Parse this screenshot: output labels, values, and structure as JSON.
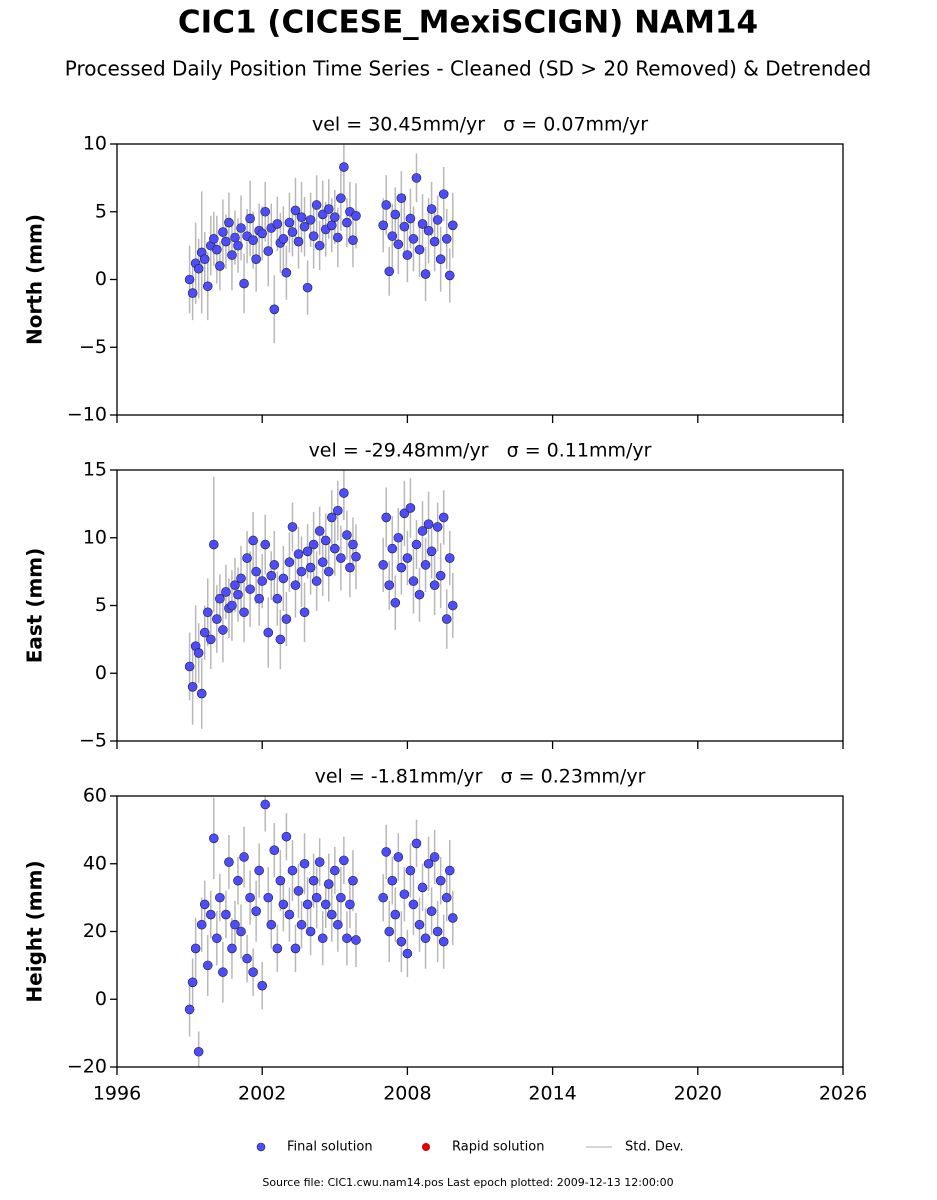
{
  "title": "CIC1 (CICESE_MexiSCIGN) NAM14",
  "subtitle": "Processed Daily Position Time Series - Cleaned (SD > 20 Removed) & Detrended",
  "legend": [
    {
      "name": "Final solution",
      "color": "#4d4dff"
    },
    {
      "name": "Rapid solution",
      "color": "#e00000"
    },
    {
      "name": "Std. Dev.",
      "color": "#c8c8c8"
    }
  ],
  "source": "Source file: CIC1.cwu.nam14.pos  Last epoch plotted: 2009-12-13 12:00:00",
  "chart_data": [
    {
      "type": "scatter",
      "title": "vel = 30.45mm/yr   σ = 0.07mm/yr",
      "y_label": "North (mm)",
      "xlim": [
        1996,
        2026
      ],
      "xticks": [
        1996,
        2002,
        2008,
        2014,
        2020,
        2026
      ],
      "ylim": [
        -10,
        10
      ],
      "yticks": [
        {
          "value": -10,
          "label": "−10"
        },
        {
          "value": -5,
          "label": "−5"
        },
        0,
        5,
        10
      ],
      "x": [
        1999.0,
        1999.125,
        1999.25,
        1999.375,
        1999.5,
        1999.625,
        1999.75,
        1999.875,
        2000.0,
        2000.125,
        2000.25,
        2000.375,
        2000.5,
        2000.625,
        2000.75,
        2000.875,
        2001.0,
        2001.125,
        2001.25,
        2001.375,
        2001.5,
        2001.625,
        2001.75,
        2001.875,
        2002.0,
        2002.125,
        2002.25,
        2002.375,
        2002.5,
        2002.625,
        2002.75,
        2002.875,
        2003.0,
        2003.125,
        2003.25,
        2003.375,
        2003.5,
        2003.625,
        2003.75,
        2003.875,
        2004.0,
        2004.125,
        2004.25,
        2004.375,
        2004.5,
        2004.625,
        2004.75,
        2004.875,
        2005.0,
        2005.125,
        2005.25,
        2005.375,
        2005.5,
        2005.625,
        2005.75,
        2005.875,
        2007.0,
        2007.125,
        2007.25,
        2007.375,
        2007.5,
        2007.625,
        2007.75,
        2007.875,
        2008.0,
        2008.125,
        2008.25,
        2008.375,
        2008.5,
        2008.625,
        2008.75,
        2008.875,
        2009.0,
        2009.125,
        2009.25,
        2009.375,
        2009.5,
        2009.625,
        2009.75,
        2009.875
      ],
      "series": [
        {
          "color": "#4d4dff",
          "values": [
            0.0,
            -1.0,
            1.2,
            0.8,
            2.0,
            1.5,
            -0.5,
            2.5,
            3.0,
            2.2,
            1.0,
            3.5,
            2.8,
            4.2,
            1.8,
            3.1,
            2.5,
            3.8,
            -0.3,
            3.2,
            4.5,
            2.9,
            1.5,
            3.6,
            3.4,
            5.0,
            2.1,
            3.8,
            -2.2,
            4.1,
            2.7,
            3.0,
            0.5,
            4.2,
            3.5,
            5.1,
            2.8,
            4.6,
            3.9,
            -0.6,
            4.4,
            3.2,
            5.5,
            2.5,
            4.8,
            3.7,
            5.2,
            4.0,
            4.6,
            3.1,
            6.0,
            8.3,
            4.2,
            5.0,
            2.9,
            4.7,
            4.0,
            5.5,
            0.6,
            3.2,
            4.8,
            2.6,
            6.0,
            3.9,
            1.8,
            4.5,
            3.0,
            7.5,
            2.2,
            4.1,
            0.4,
            3.6,
            5.2,
            2.8,
            4.4,
            1.5,
            6.3,
            3.0,
            0.3,
            4.0
          ],
          "errors": [
            2.5,
            2.0,
            3.0,
            2.2,
            4.5,
            2.0,
            2.5,
            2.2,
            2.0,
            2.5,
            1.8,
            2.4,
            2.0,
            2.2,
            2.6,
            2.0,
            2.0,
            2.4,
            2.2,
            2.0,
            2.8,
            2.1,
            2.4,
            2.0,
            2.0,
            2.2,
            2.6,
            1.8,
            2.5,
            2.0,
            2.2,
            2.4,
            2.0,
            2.2,
            1.8,
            2.4,
            2.0,
            2.6,
            2.2,
            2.0,
            2.0,
            2.4,
            2.2,
            1.8,
            2.5,
            2.0,
            2.2,
            2.0,
            2.0,
            2.2,
            2.4,
            2.0,
            1.8,
            2.2,
            2.0,
            2.4,
            2.0,
            2.2,
            1.8,
            2.4,
            2.0,
            2.2,
            2.0,
            2.4,
            2.0,
            2.2,
            2.4,
            1.8,
            2.0,
            2.2,
            2.0,
            2.4,
            2.0,
            2.2,
            1.8,
            2.4,
            2.0,
            2.2,
            2.0,
            2.4
          ]
        }
      ]
    },
    {
      "type": "scatter",
      "title": "vel = -29.48mm/yr   σ = 0.11mm/yr",
      "y_label": "East (mm)",
      "xlim": [
        1996,
        2026
      ],
      "xticks": [
        1996,
        2002,
        2008,
        2014,
        2020,
        2026
      ],
      "ylim": [
        -5,
        15
      ],
      "yticks": [
        {
          "value": -5,
          "label": "−5"
        },
        0,
        5,
        10,
        15
      ],
      "x": [
        1999.0,
        1999.125,
        1999.25,
        1999.375,
        1999.5,
        1999.625,
        1999.75,
        1999.875,
        2000.0,
        2000.125,
        2000.25,
        2000.375,
        2000.5,
        2000.625,
        2000.75,
        2000.875,
        2001.0,
        2001.125,
        2001.25,
        2001.375,
        2001.5,
        2001.625,
        2001.75,
        2001.875,
        2002.0,
        2002.125,
        2002.25,
        2002.375,
        2002.5,
        2002.625,
        2002.75,
        2002.875,
        2003.0,
        2003.125,
        2003.25,
        2003.375,
        2003.5,
        2003.625,
        2003.75,
        2003.875,
        2004.0,
        2004.125,
        2004.25,
        2004.375,
        2004.5,
        2004.625,
        2004.75,
        2004.875,
        2005.0,
        2005.125,
        2005.25,
        2005.375,
        2005.5,
        2005.625,
        2005.75,
        2005.875,
        2007.0,
        2007.125,
        2007.25,
        2007.375,
        2007.5,
        2007.625,
        2007.75,
        2007.875,
        2008.0,
        2008.125,
        2008.25,
        2008.375,
        2008.5,
        2008.625,
        2008.75,
        2008.875,
        2009.0,
        2009.125,
        2009.25,
        2009.375,
        2009.5,
        2009.625,
        2009.75,
        2009.875
      ],
      "series": [
        {
          "color": "#4d4dff",
          "values": [
            0.5,
            -1.0,
            2.0,
            1.5,
            -1.5,
            3.0,
            4.5,
            2.5,
            9.5,
            4.0,
            5.5,
            3.2,
            6.0,
            4.8,
            5.0,
            6.5,
            5.8,
            7.0,
            4.5,
            8.5,
            6.2,
            9.8,
            7.5,
            5.5,
            6.8,
            9.5,
            3.0,
            7.2,
            8.0,
            5.5,
            2.5,
            7.0,
            4.0,
            8.2,
            10.8,
            6.5,
            8.8,
            7.5,
            4.5,
            9.0,
            7.8,
            9.5,
            6.8,
            10.5,
            8.2,
            9.8,
            7.5,
            11.5,
            9.2,
            12.0,
            8.5,
            13.3,
            10.2,
            7.8,
            9.5,
            8.6,
            8.0,
            11.5,
            6.5,
            9.2,
            5.2,
            10.0,
            7.8,
            11.8,
            8.5,
            12.2,
            6.8,
            9.5,
            5.8,
            10.5,
            8.0,
            11.0,
            9.0,
            6.5,
            10.8,
            7.2,
            11.5,
            4.0,
            8.5,
            5.0
          ],
          "errors": [
            2.5,
            2.8,
            3.0,
            2.2,
            2.6,
            2.0,
            2.5,
            2.2,
            5.0,
            2.5,
            1.8,
            2.4,
            2.0,
            2.2,
            2.6,
            2.0,
            2.0,
            2.4,
            2.2,
            2.0,
            2.8,
            2.1,
            2.4,
            2.0,
            2.0,
            2.2,
            2.6,
            1.8,
            2.5,
            2.0,
            2.2,
            2.4,
            2.0,
            2.2,
            1.8,
            2.4,
            2.0,
            2.6,
            2.2,
            2.0,
            2.0,
            2.4,
            2.2,
            1.8,
            2.5,
            2.0,
            2.2,
            2.0,
            2.0,
            2.2,
            2.4,
            2.0,
            1.8,
            2.2,
            2.0,
            2.4,
            2.0,
            2.2,
            1.8,
            2.4,
            2.0,
            2.2,
            2.0,
            2.4,
            2.0,
            2.2,
            2.4,
            1.8,
            2.0,
            2.2,
            2.0,
            2.4,
            2.0,
            2.2,
            1.8,
            2.4,
            2.0,
            2.2,
            2.0,
            2.4
          ]
        }
      ]
    },
    {
      "type": "scatter",
      "title": "vel = -1.81mm/yr   σ = 0.23mm/yr",
      "y_label": "Height (mm)",
      "xlim": [
        1996,
        2026
      ],
      "xticks": [
        1996,
        2002,
        2008,
        2014,
        2020,
        2026
      ],
      "ylim": [
        -20,
        60
      ],
      "yticks": [
        {
          "value": -20,
          "label": "−20"
        },
        0,
        20,
        40,
        60
      ],
      "x": [
        1999.0,
        1999.125,
        1999.25,
        1999.375,
        1999.5,
        1999.625,
        1999.75,
        1999.875,
        2000.0,
        2000.125,
        2000.25,
        2000.375,
        2000.5,
        2000.625,
        2000.75,
        2000.875,
        2001.0,
        2001.125,
        2001.25,
        2001.375,
        2001.5,
        2001.625,
        2001.75,
        2001.875,
        2002.0,
        2002.125,
        2002.25,
        2002.375,
        2002.5,
        2002.625,
        2002.75,
        2002.875,
        2003.0,
        2003.125,
        2003.25,
        2003.375,
        2003.5,
        2003.625,
        2003.75,
        2003.875,
        2004.0,
        2004.125,
        2004.25,
        2004.375,
        2004.5,
        2004.625,
        2004.75,
        2004.875,
        2005.0,
        2005.125,
        2005.25,
        2005.375,
        2005.5,
        2005.625,
        2005.75,
        2005.875,
        2007.0,
        2007.125,
        2007.25,
        2007.375,
        2007.5,
        2007.625,
        2007.75,
        2007.875,
        2008.0,
        2008.125,
        2008.25,
        2008.375,
        2008.5,
        2008.625,
        2008.75,
        2008.875,
        2009.0,
        2009.125,
        2009.25,
        2009.375,
        2009.5,
        2009.625,
        2009.75,
        2009.875
      ],
      "series": [
        {
          "color": "#4d4dff",
          "values": [
            -3.0,
            5.0,
            15.0,
            -15.5,
            22.0,
            28.0,
            10.0,
            25.0,
            47.5,
            18.0,
            30.0,
            8.0,
            25.0,
            40.5,
            15.0,
            22.0,
            35.0,
            20.0,
            42.0,
            12.0,
            30.0,
            8.0,
            26.0,
            38.0,
            4.0,
            57.5,
            30.0,
            22.0,
            44.0,
            15.0,
            35.0,
            28.0,
            48.0,
            25.0,
            38.0,
            15.0,
            32.0,
            22.0,
            40.0,
            28.0,
            20.0,
            35.0,
            30.0,
            40.5,
            18.0,
            28.0,
            34.0,
            25.0,
            38.0,
            22.0,
            30.0,
            41.0,
            18.0,
            28.0,
            35.0,
            17.5,
            30.0,
            43.5,
            20.0,
            35.0,
            25.0,
            42.0,
            17.0,
            31.0,
            13.5,
            38.0,
            28.0,
            46.0,
            22.0,
            33.0,
            18.0,
            40.0,
            26.0,
            42.0,
            20.0,
            35.0,
            17.0,
            30.0,
            38.0,
            24.0
          ],
          "errors": [
            8,
            7,
            9,
            6,
            8,
            7,
            9,
            7,
            12,
            8,
            7,
            9,
            7,
            8,
            9,
            7,
            7,
            8,
            9,
            7,
            8,
            7,
            9,
            8,
            7,
            8,
            9,
            7,
            8,
            7,
            9,
            8,
            7,
            8,
            9,
            7,
            8,
            7,
            9,
            8,
            7,
            8,
            9,
            7,
            8,
            7,
            9,
            8,
            7,
            8,
            9,
            7,
            8,
            7,
            9,
            8,
            7,
            8,
            9,
            7,
            8,
            7,
            9,
            8,
            7,
            8,
            9,
            7,
            8,
            7,
            9,
            8,
            7,
            8,
            9,
            7,
            8,
            7,
            9,
            8
          ]
        }
      ]
    }
  ]
}
